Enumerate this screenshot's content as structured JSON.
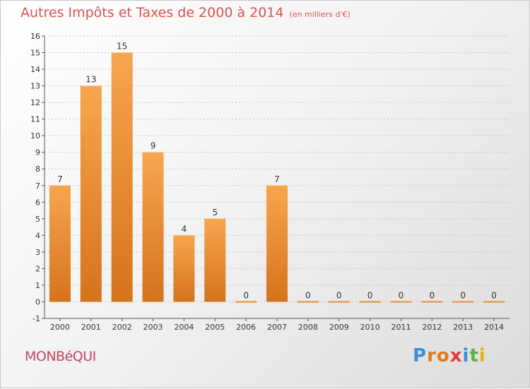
{
  "title": "Autres Impôts et Taxes de 2000 à 2014",
  "subtitle": "(en milliers d'€)",
  "town": "MONBéQUI",
  "logo": {
    "letters": [
      "P",
      "r",
      "o",
      "x",
      "i",
      "t",
      "i"
    ],
    "colors": [
      "#3a8fd8",
      "#e07b1a",
      "#e07b1a",
      "#e03a3a",
      "#3a8fd8",
      "#59b63a",
      "#e0b21a"
    ]
  },
  "colors": {
    "bar_top": "#f7a64e",
    "bar_bottom": "#d6731c",
    "grid": "#c6c6c6",
    "title": "#d9534f",
    "town": "#c0455e"
  },
  "chart_data": {
    "type": "bar",
    "title": "Autres Impôts et Taxes de 2000 à 2014",
    "subtitle": "(en milliers d'€)",
    "categories": [
      "2000",
      "2001",
      "2002",
      "2003",
      "2004",
      "2005",
      "2006",
      "2007",
      "2008",
      "2009",
      "2010",
      "2011",
      "2012",
      "2013",
      "2014"
    ],
    "values": [
      7,
      13,
      15,
      9,
      4,
      5,
      0,
      7,
      0,
      0,
      0,
      0,
      0,
      0,
      0
    ],
    "ylim": [
      -1,
      16
    ],
    "yticks": [
      "-1",
      "0",
      "1",
      "2",
      "3",
      "4",
      "5",
      "6",
      "7",
      "8",
      "9",
      "10",
      "11",
      "12",
      "13",
      "14",
      "15",
      "16"
    ],
    "grid": true
  }
}
